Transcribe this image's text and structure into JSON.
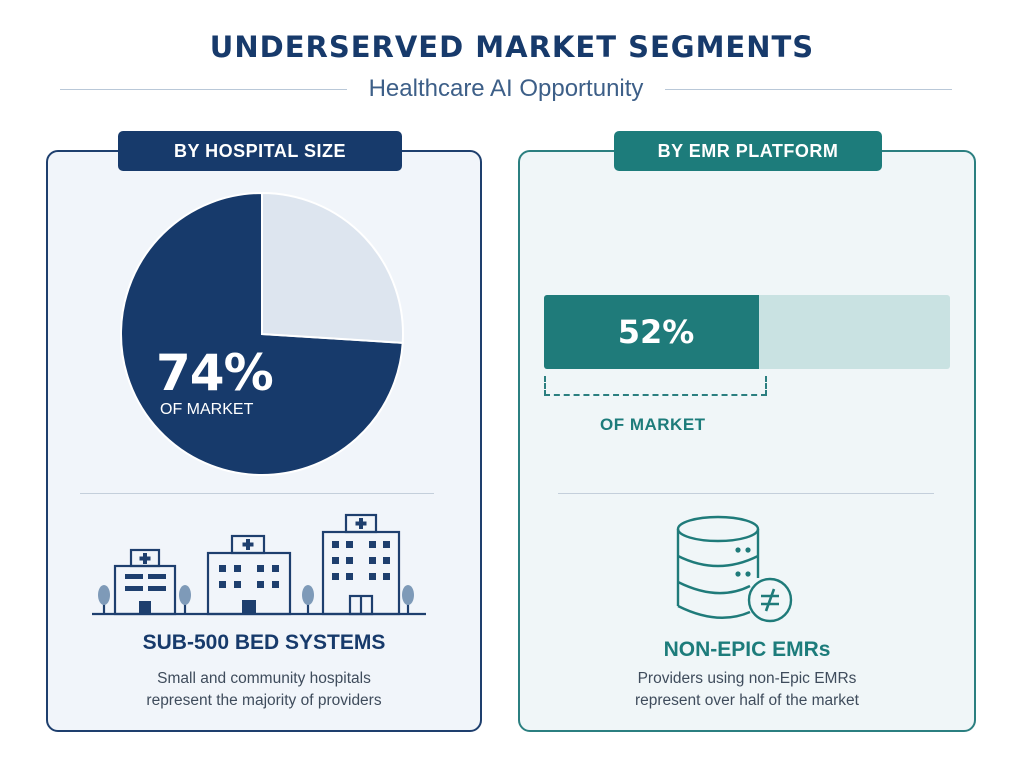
{
  "header": {
    "title": "UNDERSERVED MARKET SEGMENTS",
    "subtitle": "Healthcare AI Opportunity"
  },
  "left_panel": {
    "tab_label": "BY HOSPITAL SIZE",
    "big_value": "74%",
    "big_value_sub": "OF MARKET",
    "segment_title": "SUB-500 BED SYSTEMS",
    "description_line1": "Small and community hospitals",
    "description_line2": "represent the majority of providers",
    "icon": "hospital-buildings-icon"
  },
  "right_panel": {
    "tab_label": "BY EMR PLATFORM",
    "bar_value_label": "52%",
    "bar_value_sub": "OF MARKET",
    "segment_title": "NON-EPIC EMRs",
    "description_line1": "Providers using non-Epic EMRs",
    "description_line2": "represent over half of the market",
    "icon": "database-not-equal-icon"
  },
  "colors": {
    "navy": "#173a6b",
    "navy_light": "#dde5ef",
    "teal": "#1f7b7a",
    "teal_light": "#c9e2e2"
  },
  "chart_data": [
    {
      "type": "pie",
      "title": "BY HOSPITAL SIZE",
      "slices": [
        {
          "label": "OF MARKET",
          "value": 74,
          "color": "#173a6b"
        },
        {
          "label": "",
          "value": 26,
          "color": "#dde5ef"
        }
      ]
    },
    {
      "type": "bar",
      "title": "BY EMR PLATFORM",
      "orientation": "horizontal",
      "stacked": true,
      "values": [
        52,
        48
      ],
      "xlim": [
        0,
        100
      ]
    }
  ]
}
